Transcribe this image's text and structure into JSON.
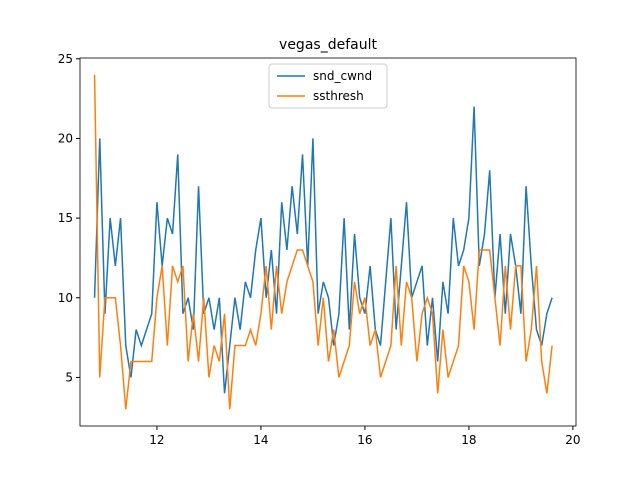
{
  "chart_data": {
    "type": "line",
    "title": "vegas_default",
    "x": [
      10.8,
      10.9,
      11.0,
      11.1,
      11.2,
      11.3,
      11.4,
      11.5,
      11.6,
      11.7,
      11.8,
      11.9,
      12.0,
      12.1,
      12.2,
      12.3,
      12.4,
      12.5,
      12.6,
      12.7,
      12.8,
      12.9,
      13.0,
      13.1,
      13.2,
      13.3,
      13.4,
      13.5,
      13.6,
      13.7,
      13.8,
      13.9,
      14.0,
      14.1,
      14.2,
      14.3,
      14.4,
      14.5,
      14.6,
      14.7,
      14.8,
      14.9,
      15.0,
      15.1,
      15.2,
      15.3,
      15.4,
      15.5,
      15.6,
      15.7,
      15.8,
      15.9,
      16.0,
      16.1,
      16.2,
      16.3,
      16.4,
      16.5,
      16.6,
      16.7,
      16.8,
      16.9,
      17.0,
      17.1,
      17.2,
      17.3,
      17.4,
      17.5,
      17.6,
      17.7,
      17.8,
      17.9,
      18.0,
      18.1,
      18.2,
      18.3,
      18.4,
      18.5,
      18.6,
      18.7,
      18.8,
      18.9,
      19.0,
      19.1,
      19.2,
      19.3,
      19.4,
      19.5,
      19.6
    ],
    "series": [
      {
        "name": "snd_cwnd",
        "color": "#1f77b4",
        "values": [
          10,
          20,
          9,
          15,
          12,
          15,
          7,
          5,
          8,
          7,
          8,
          9,
          16,
          12,
          15,
          14,
          19,
          9,
          10,
          8,
          17,
          9,
          10,
          8,
          10,
          4,
          7,
          10,
          8,
          11,
          10,
          13,
          15,
          10,
          13,
          9,
          16,
          13,
          17,
          14,
          19,
          12,
          20,
          9,
          11,
          10,
          7,
          9,
          15,
          8,
          14,
          10,
          9,
          12,
          8,
          7,
          11,
          15,
          8,
          12,
          16,
          10,
          11,
          12,
          7,
          10,
          6,
          11,
          9,
          15,
          12,
          13,
          15,
          22,
          12,
          14,
          18,
          10,
          14,
          9,
          14,
          12,
          9,
          17,
          12,
          8,
          7,
          9,
          10
        ]
      },
      {
        "name": "ssthresh",
        "color": "#ff7f0e",
        "values": [
          24,
          5,
          10,
          10,
          10,
          7,
          3,
          6,
          6,
          6,
          6,
          6,
          10,
          12,
          7,
          12,
          11,
          12,
          6,
          9,
          6,
          10,
          5,
          7,
          6,
          9,
          3,
          7,
          7,
          7,
          8,
          7,
          9,
          12,
          8,
          12,
          9,
          11,
          12,
          13,
          13,
          12,
          11,
          7,
          10,
          6,
          8,
          5,
          6,
          7,
          11,
          9,
          10,
          7,
          8,
          5,
          6,
          7,
          12,
          7,
          11,
          10,
          6,
          9,
          10,
          9,
          4,
          8,
          5,
          6,
          7,
          12,
          11,
          8,
          13,
          13,
          13,
          10,
          7,
          12,
          8,
          12,
          12,
          6,
          8,
          12,
          6,
          4,
          7
        ]
      }
    ],
    "xlim": [
      10.52,
      20.06
    ],
    "ylim": [
      1.95,
      25.05
    ],
    "xticks": [
      12,
      14,
      16,
      18,
      20
    ],
    "yticks": [
      5,
      10,
      15,
      20,
      25
    ],
    "legend": "upper center"
  }
}
